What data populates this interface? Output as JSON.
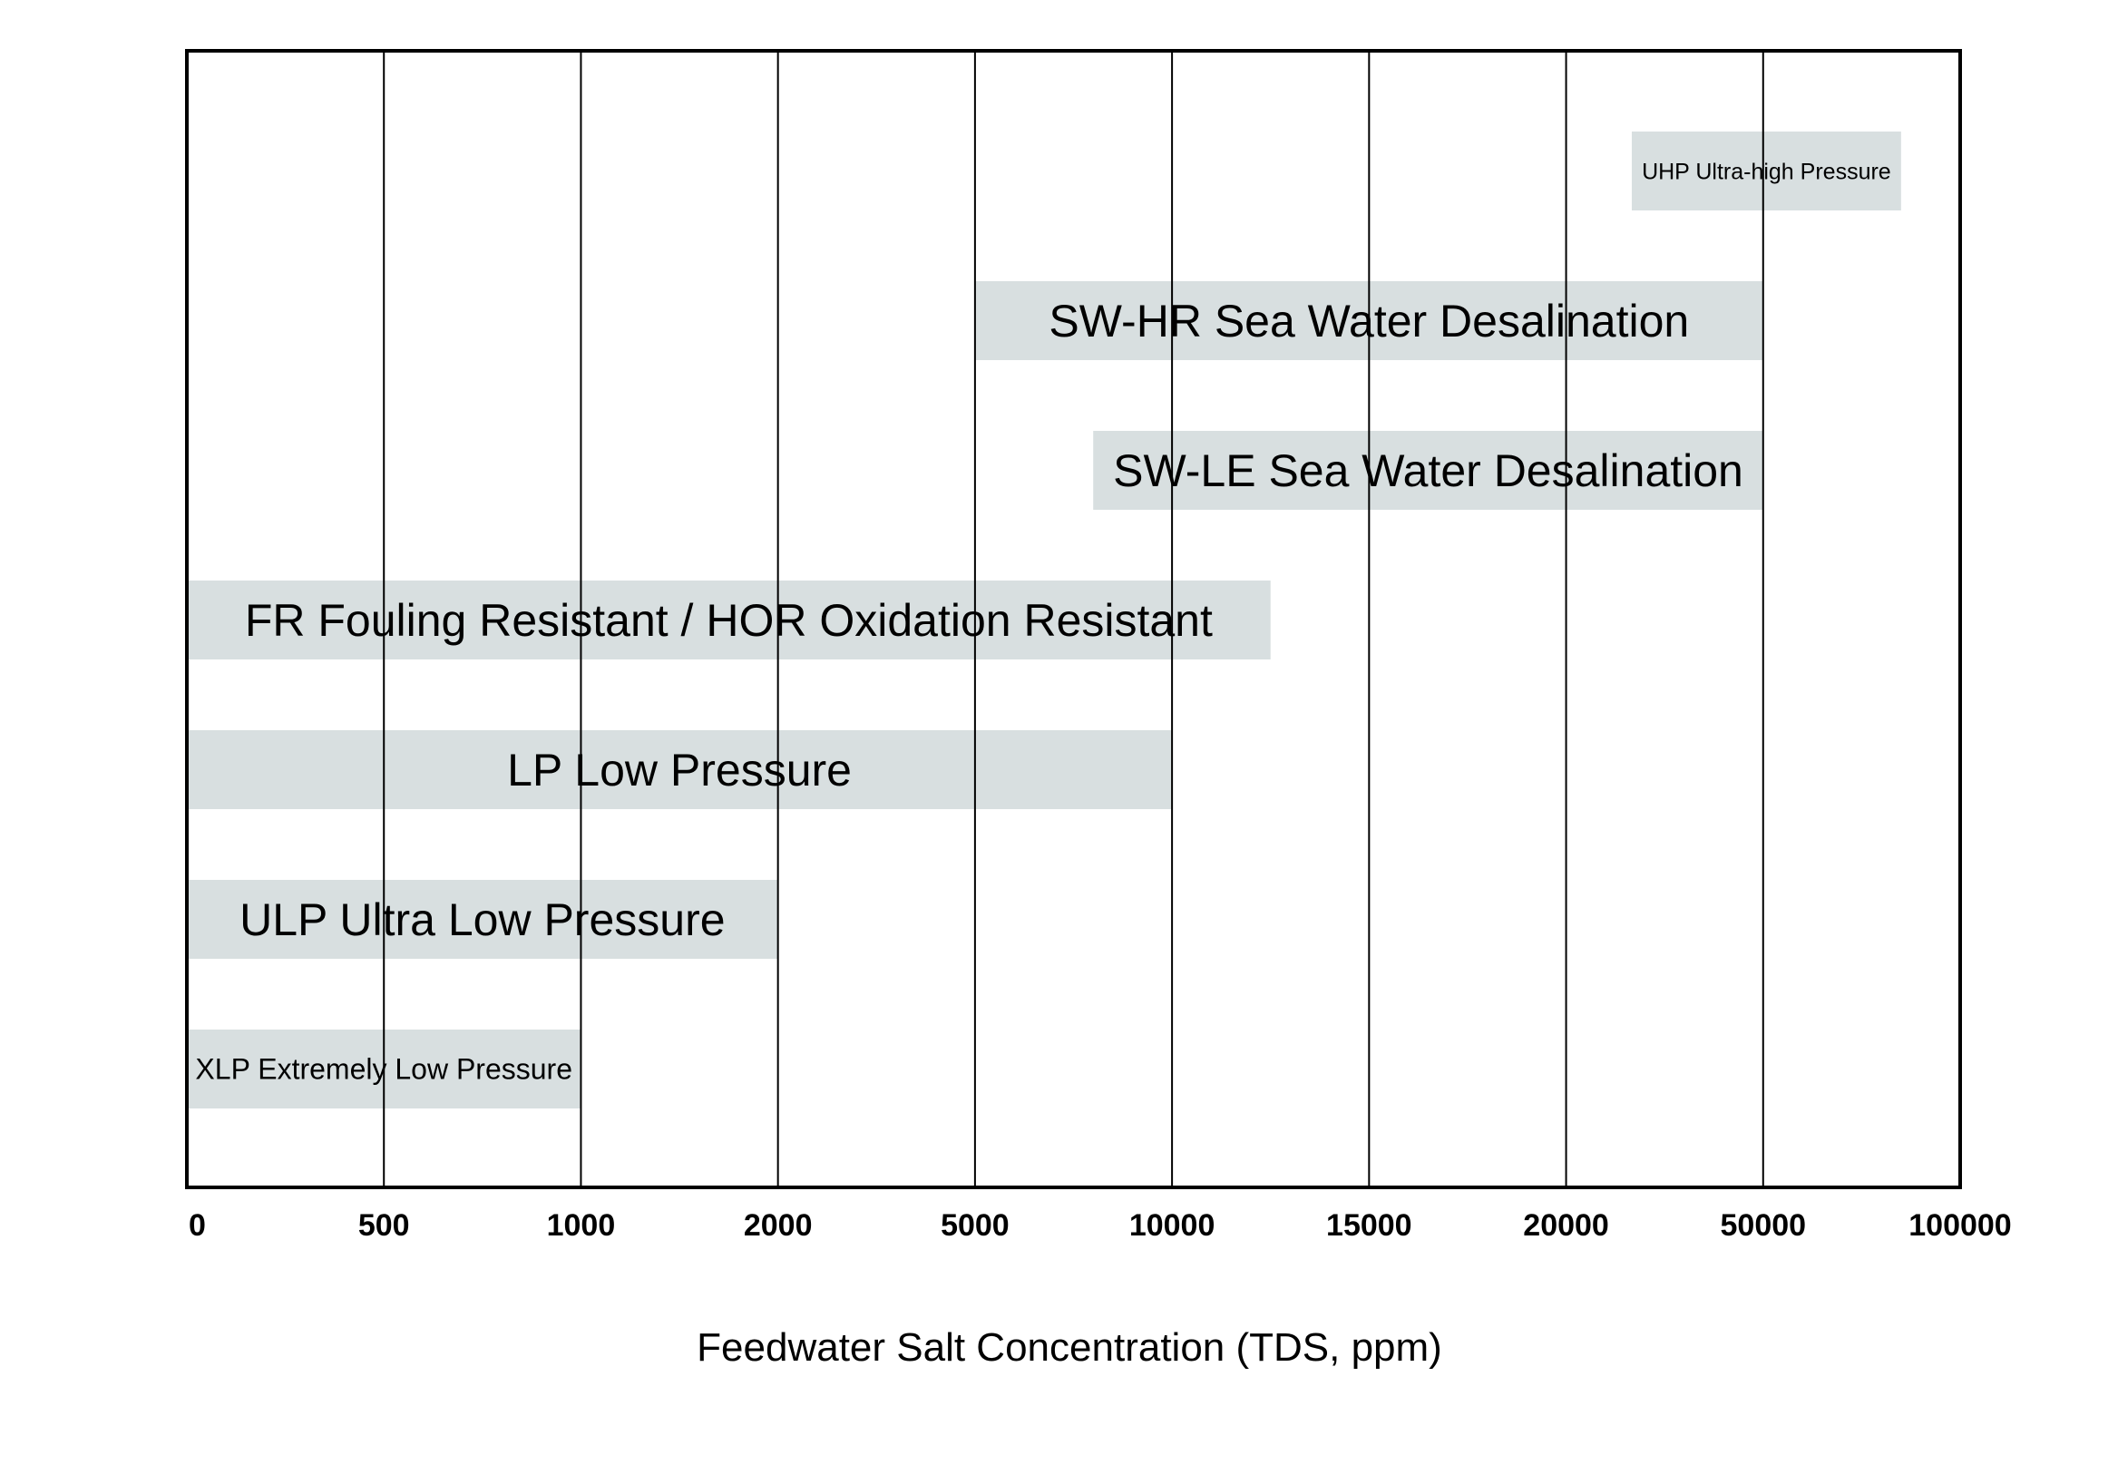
{
  "chart_data": {
    "type": "bar",
    "orientation": "horizontal",
    "title": "",
    "xlabel": "Feedwater Salt Concentration (TDS, ppm)",
    "ylabel": "",
    "x_ticks": [
      "0",
      "500",
      "1000",
      "2000",
      "5000",
      "10000",
      "15000",
      "20000",
      "50000",
      "100000"
    ],
    "xlim": [
      0,
      100000
    ],
    "grid": true,
    "legend": "none",
    "bar_color": "#d8dfe0",
    "series": [
      {
        "label": "UHP Ultra-high Pressure",
        "x_start": 30000,
        "x_end": 85000
      },
      {
        "label": "SW-HR Sea Water Desalination",
        "x_start": 5000,
        "x_end": 50000
      },
      {
        "label": "SW-LE Sea Water Desalination",
        "x_start": 8000,
        "x_end": 50000
      },
      {
        "label": "FR Fouling Resistant / HOR Oxidation Resistant",
        "x_start": 0,
        "x_end": 12500
      },
      {
        "label": "LP Low Pressure",
        "x_start": 0,
        "x_end": 10000
      },
      {
        "label": "ULP Ultra Low Pressure",
        "x_start": 0,
        "x_end": 2000
      },
      {
        "label": "XLP Extremely Low Pressure",
        "x_start": 0,
        "x_end": 1000
      }
    ]
  }
}
